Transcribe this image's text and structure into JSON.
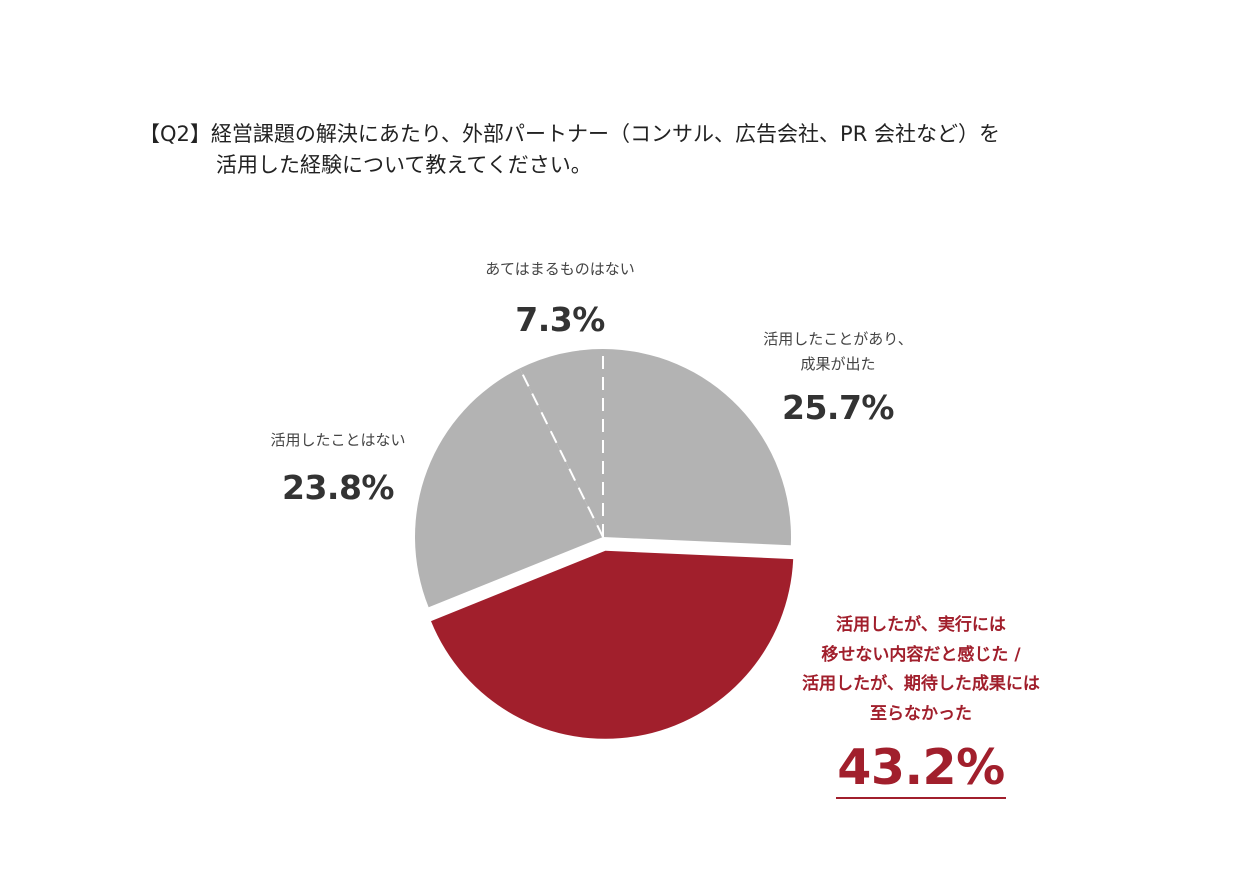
{
  "question": {
    "line1": "【Q2】経営課題の解決にあたり、外部パートナー（コンサル、広告会社、PR 会社など）を",
    "line2": "活用した経験について教えてください。"
  },
  "colors": {
    "highlight": "#a11f2c",
    "other": "#b3b3b3",
    "divider": "#ffffff"
  },
  "chart_data": {
    "type": "pie",
    "title": "",
    "slices": [
      {
        "label": "活用したことがあり、\n成果が出た",
        "value": 25.7,
        "display": "25.7%"
      },
      {
        "label": "活用したが、実行には\n移せない内容だと感じた /\n活用したが、期待した成果には\n至らなかった",
        "value": 43.2,
        "display": "43.2%",
        "highlight": true,
        "exploded": true
      },
      {
        "label": "活用したことはない",
        "value": 23.8,
        "display": "23.8%"
      },
      {
        "label": "あてはまるものはない",
        "value": 7.3,
        "display": "7.3%"
      }
    ],
    "start_angle": "12 o'clock, clockwise",
    "legend": "none (direct labels)"
  }
}
